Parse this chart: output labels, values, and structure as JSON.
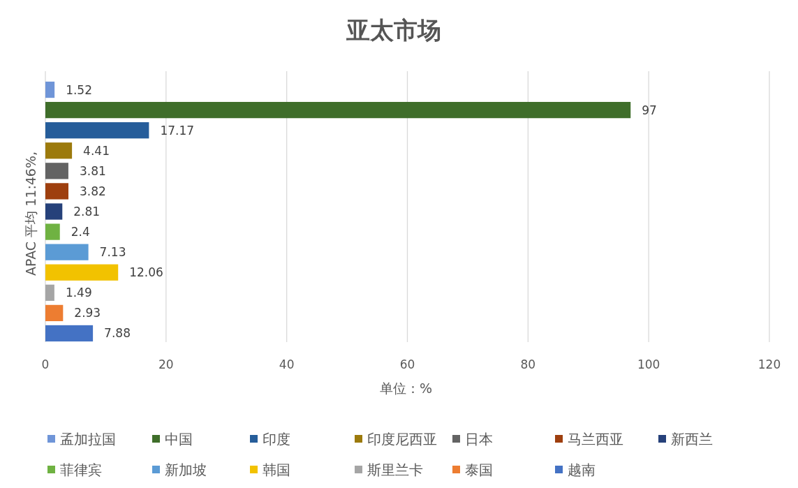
{
  "chart_data": {
    "type": "bar",
    "orientation": "horizontal",
    "title": "亚太市场",
    "xlabel": "单位：%",
    "ylabel": "APAC 平均 11:46%,",
    "categories": [
      null
    ],
    "series": [
      {
        "name": "孟加拉国",
        "color": "#6f95d8",
        "values": [
          1.52
        ]
      },
      {
        "name": "中国",
        "color": "#3f6e2a",
        "values": [
          97
        ]
      },
      {
        "name": "印度",
        "color": "#265d9a",
        "values": [
          17.17
        ]
      },
      {
        "name": "印度尼西亚",
        "color": "#9c7a0c",
        "values": [
          4.41
        ]
      },
      {
        "name": "日本",
        "color": "#636363",
        "values": [
          3.81
        ]
      },
      {
        "name": "马兰西亚",
        "color": "#9e3f0e",
        "values": [
          3.82
        ]
      },
      {
        "name": "新西兰",
        "color": "#26417a",
        "values": [
          2.81
        ]
      },
      {
        "name": "菲律宾",
        "color": "#6fb242",
        "values": [
          2.4
        ]
      },
      {
        "name": "新加坡",
        "color": "#5b9bd5",
        "values": [
          7.13
        ]
      },
      {
        "name": "韩国",
        "color": "#f2c200",
        "values": [
          12.06
        ]
      },
      {
        "name": "斯里兰卡",
        "color": "#a5a5a5",
        "values": [
          1.49
        ]
      },
      {
        "name": "泰国",
        "color": "#ed7d31",
        "values": [
          2.93
        ]
      },
      {
        "name": "越南",
        "color": "#4472c4",
        "values": [
          7.88
        ]
      }
    ],
    "xlim": [
      0,
      120
    ],
    "xticks": [
      0,
      20,
      40,
      60,
      80,
      100,
      120
    ],
    "grid": "x",
    "legend": "bottom",
    "data_labels": true
  }
}
